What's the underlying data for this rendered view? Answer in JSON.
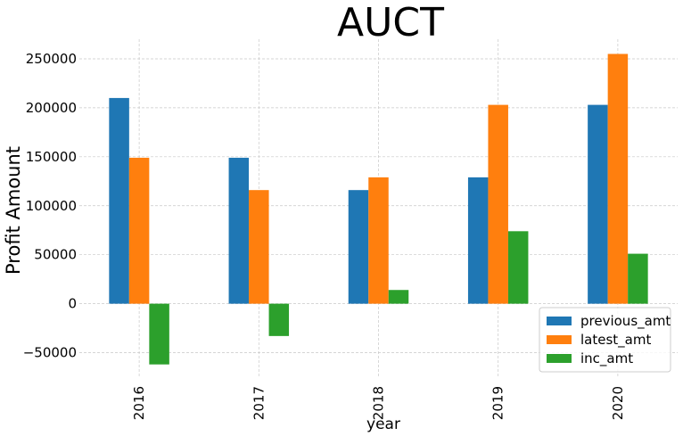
{
  "chart_data": {
    "type": "bar",
    "title": "AUCT",
    "xlabel": "year",
    "ylabel": "Profit Amount",
    "categories": [
      "2016",
      "2017",
      "2018",
      "2019",
      "2020"
    ],
    "series": [
      {
        "name": "previous_amt",
        "color": "#1f77b4",
        "values": [
          210000,
          149000,
          116000,
          129000,
          203000
        ]
      },
      {
        "name": "latest_amt",
        "color": "#ff7f0e",
        "values": [
          149000,
          116000,
          129000,
          203000,
          255000
        ]
      },
      {
        "name": "inc_amt",
        "color": "#2ca02c",
        "values": [
          -62000,
          -33000,
          14000,
          74000,
          51000
        ]
      }
    ],
    "ylim": [
      -75000,
      270000
    ],
    "yticks": [
      -50000,
      0,
      50000,
      100000,
      150000,
      200000,
      250000
    ],
    "ytick_labels": [
      "−50000",
      "0",
      "50000",
      "100000",
      "150000",
      "200000",
      "250000"
    ],
    "grid": true,
    "legend_position": "lower-right"
  }
}
